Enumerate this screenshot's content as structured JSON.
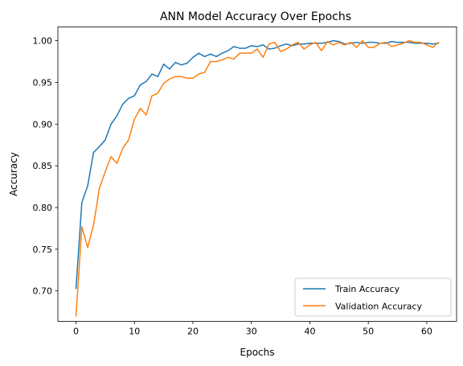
{
  "chart_data": {
    "type": "line",
    "title": "ANN Model Accuracy Over Epochs",
    "xlabel": "Epochs",
    "ylabel": "Accuracy",
    "xlim": [
      -3.1,
      65.1
    ],
    "ylim": [
      0.6635,
      1.0165
    ],
    "xticks": [
      0,
      10,
      20,
      30,
      40,
      50,
      60
    ],
    "yticks": [
      0.7,
      0.75,
      0.8,
      0.85,
      0.9,
      0.95,
      1.0
    ],
    "xtick_labels": [
      "0",
      "10",
      "20",
      "30",
      "40",
      "50",
      "60"
    ],
    "ytick_labels": [
      "0.70",
      "0.75",
      "0.80",
      "0.85",
      "0.90",
      "0.95",
      "1.00"
    ],
    "grid": false,
    "legend_position": "lower-right",
    "series": [
      {
        "name": "Train Accuracy",
        "color": "#1f77b4",
        "values": [
          0.703,
          0.806,
          0.826,
          0.866,
          0.873,
          0.881,
          0.9,
          0.91,
          0.924,
          0.931,
          0.934,
          0.947,
          0.951,
          0.96,
          0.957,
          0.972,
          0.966,
          0.974,
          0.971,
          0.973,
          0.98,
          0.985,
          0.981,
          0.984,
          0.981,
          0.985,
          0.988,
          0.993,
          0.991,
          0.991,
          0.994,
          0.993,
          0.995,
          0.99,
          0.991,
          0.994,
          0.996,
          0.994,
          0.996,
          0.996,
          0.997,
          0.997,
          0.997,
          0.998,
          1.0,
          0.999,
          0.996,
          0.997,
          0.998,
          0.997,
          0.998,
          0.998,
          0.997,
          0.997,
          0.999,
          0.998,
          0.998,
          0.998,
          0.997,
          0.997,
          0.997,
          0.996,
          0.997
        ]
      },
      {
        "name": "Validation Accuracy",
        "color": "#ff7f0e",
        "values": [
          0.67,
          0.777,
          0.752,
          0.779,
          0.823,
          0.843,
          0.861,
          0.853,
          0.871,
          0.881,
          0.906,
          0.919,
          0.911,
          0.934,
          0.937,
          0.949,
          0.954,
          0.957,
          0.957,
          0.955,
          0.955,
          0.96,
          0.962,
          0.975,
          0.975,
          0.977,
          0.98,
          0.978,
          0.985,
          0.985,
          0.985,
          0.99,
          0.98,
          0.996,
          0.998,
          0.987,
          0.99,
          0.995,
          0.998,
          0.99,
          0.995,
          0.998,
          0.988,
          0.999,
          0.995,
          0.998,
          0.995,
          0.998,
          0.992,
          1.0,
          0.992,
          0.992,
          0.997,
          0.998,
          0.993,
          0.995,
          0.997,
          1.0,
          0.998,
          0.998,
          0.995,
          0.992,
          0.998
        ]
      }
    ]
  }
}
